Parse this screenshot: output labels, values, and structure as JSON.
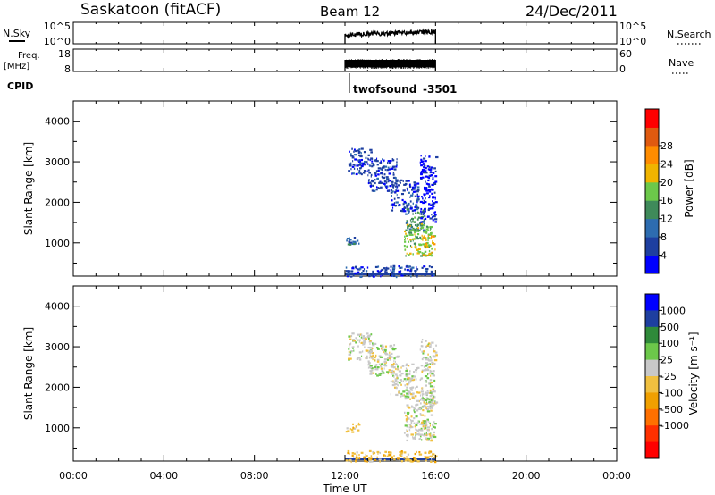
{
  "header": {
    "station": "Saskatoon (fitACF)",
    "beam": "Beam 12",
    "date": "24/Dec/2011"
  },
  "strips": {
    "nsky_label": "N.Sky",
    "nsky_ticks": [
      "10^5",
      "10^0"
    ],
    "nsearch_label": "N.Search",
    "nsearch_ticks": [
      "10^5",
      "10^0"
    ],
    "freq_label_top": "Freq.",
    "freq_label_bottom": "[MHz]",
    "freq_ticks": [
      "18",
      "8"
    ],
    "nave_label": "Nave",
    "nave_ticks": [
      "60",
      "0"
    ],
    "cpid_label": "CPID",
    "cpid_name": "twofsound",
    "cpid_value": "-3501"
  },
  "chart_data": [
    {
      "type": "heatmap",
      "name": "power-panel",
      "ylabel": "Slant Range [km]",
      "yticks": [
        "1000",
        "2000",
        "3000",
        "4000"
      ],
      "ylim": [
        180,
        4500
      ],
      "xlim": [
        0,
        24
      ],
      "data_time_range": [
        12,
        16
      ],
      "colorbar_label": "Power [dB]",
      "colorbar_ticks": [
        "4",
        "8",
        "12",
        "16",
        "20",
        "24",
        "28"
      ],
      "colorbar_colors": [
        "#0000ff",
        "#1e3fa0",
        "#2d6cb0",
        "#3f8a5a",
        "#6cc84a",
        "#f0b400",
        "#ff8c00",
        "#e05a10",
        "#ff0000"
      ],
      "regions": [
        {
          "t0": 12.1,
          "t1": 13.2,
          "r0": 2700,
          "r1": 3350,
          "level": 1
        },
        {
          "t0": 13.0,
          "t1": 14.3,
          "r0": 2300,
          "r1": 3100,
          "level": 1
        },
        {
          "t0": 14.0,
          "t1": 15.2,
          "r0": 1800,
          "r1": 2600,
          "level": 1
        },
        {
          "t0": 14.6,
          "t1": 15.5,
          "r0": 1300,
          "r1": 1900,
          "level": 3
        },
        {
          "t0": 14.6,
          "t1": 15.8,
          "r0": 700,
          "r1": 1500,
          "level": 4
        },
        {
          "t0": 15.4,
          "t1": 16.0,
          "r0": 700,
          "r1": 1200,
          "level": 5
        },
        {
          "t0": 12.0,
          "t1": 12.6,
          "r0": 900,
          "r1": 1150,
          "level": 2
        },
        {
          "t0": 12.0,
          "t1": 16.0,
          "r0": 180,
          "r1": 450,
          "level": 1
        },
        {
          "t0": 15.3,
          "t1": 16.0,
          "r0": 1500,
          "r1": 3200,
          "level": 0
        }
      ]
    },
    {
      "type": "heatmap",
      "name": "velocity-panel",
      "ylabel": "Slant Range [km]",
      "yticks": [
        "1000",
        "2000",
        "3000",
        "4000"
      ],
      "ylim": [
        180,
        4500
      ],
      "xlim": [
        0,
        24
      ],
      "data_time_range": [
        12,
        16
      ],
      "colorbar_label": "Velocity [m s⁻¹]",
      "colorbar_ticks": [
        "1000",
        "500",
        "100",
        "25",
        "-25",
        "-100",
        "-500",
        "-1000"
      ],
      "colorbar_colors": [
        "#0000ff",
        "#1e3fa0",
        "#2f8a3a",
        "#6cc84a",
        "#c8c8c8",
        "#f0c040",
        "#f0a000",
        "#ff7000",
        "#ff3000",
        "#ff0000"
      ],
      "regions": [
        {
          "t0": 12.1,
          "t1": 13.2,
          "r0": 2700,
          "r1": 3350,
          "level": 4
        },
        {
          "t0": 13.0,
          "t1": 14.3,
          "r0": 2300,
          "r1": 3100,
          "level": 4
        },
        {
          "t0": 14.0,
          "t1": 15.2,
          "r0": 1800,
          "r1": 2600,
          "level": 4
        },
        {
          "t0": 14.6,
          "t1": 15.8,
          "r0": 700,
          "r1": 1900,
          "level": 4
        },
        {
          "t0": 15.4,
          "t1": 16.0,
          "r0": 700,
          "r1": 1200,
          "level": 4
        },
        {
          "t0": 12.0,
          "t1": 12.6,
          "r0": 900,
          "r1": 1150,
          "level": 5
        },
        {
          "t0": 12.0,
          "t1": 16.0,
          "r0": 180,
          "r1": 450,
          "level": 5
        },
        {
          "t0": 15.3,
          "t1": 16.0,
          "r0": 1500,
          "r1": 3200,
          "level": 4
        }
      ]
    }
  ],
  "time_axis": {
    "label": "Time UT",
    "ticks": [
      "00:00",
      "04:00",
      "08:00",
      "12:00",
      "16:00",
      "20:00",
      "00:00"
    ],
    "hours": [
      0,
      4,
      8,
      12,
      16,
      20,
      24
    ]
  }
}
